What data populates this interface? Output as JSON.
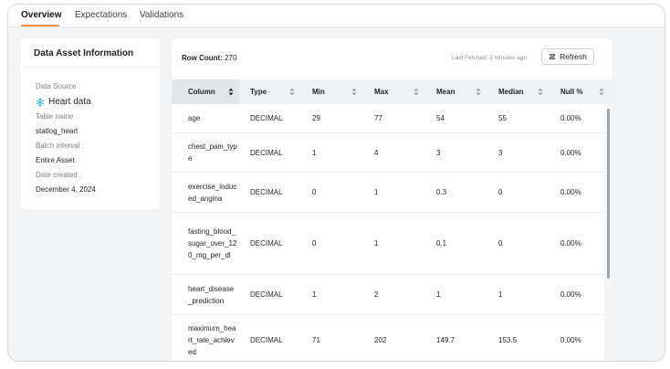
{
  "tabs": [
    {
      "label": "Overview",
      "active": true
    },
    {
      "label": "Expectations",
      "active": false
    },
    {
      "label": "Validations",
      "active": false
    }
  ],
  "info": {
    "title": "Data Asset Information",
    "data_source_label": "Data Source",
    "data_source_value": "Heart data",
    "data_source_icon": "snowflake-icon",
    "table_name_label": "Table name",
    "table_name_value": "statlog_heart",
    "batch_interval_label": "Batch interval",
    "batch_interval_value": "Entire Asset",
    "date_created_label": "Date created",
    "date_created_value": "December 4, 2024"
  },
  "table": {
    "row_count_label": "Row Count:",
    "row_count_value": "270",
    "last_fetched": "Last Fetched: 2 minutes ago",
    "refresh_label": "Refresh",
    "headers": [
      "Column",
      "Type",
      "Min",
      "Max",
      "Mean",
      "Median",
      "Null %"
    ],
    "rows": [
      {
        "name": "age",
        "type": "DECIMAL",
        "min": "29",
        "max": "77",
        "mean": "54",
        "median": "55",
        "null": "0.00%"
      },
      {
        "name": "chest_pain_type",
        "type": "DECIMAL",
        "min": "1",
        "max": "4",
        "mean": "3",
        "median": "3",
        "null": "0.00%"
      },
      {
        "name": "exercise_induced_angina",
        "type": "DECIMAL",
        "min": "0",
        "max": "1",
        "mean": "0.3",
        "median": "0",
        "null": "0.00%"
      },
      {
        "name": "fasting_blood_sugar_over_120_mg_per_dl",
        "type": "DECIMAL",
        "min": "0",
        "max": "1",
        "mean": "0.1",
        "median": "0",
        "null": "0.00%"
      },
      {
        "name": "heart_disease_prediction",
        "type": "DECIMAL",
        "min": "1",
        "max": "2",
        "mean": "1",
        "median": "1",
        "null": "0.00%"
      },
      {
        "name": "maximum_heart_rate_achieved",
        "type": "DECIMAL",
        "min": "71",
        "max": "202",
        "mean": "149.7",
        "median": "153.5",
        "null": "0.00%"
      }
    ]
  },
  "colors": {
    "accent": "#f28b3c",
    "snowflake": "#29b5e8"
  }
}
